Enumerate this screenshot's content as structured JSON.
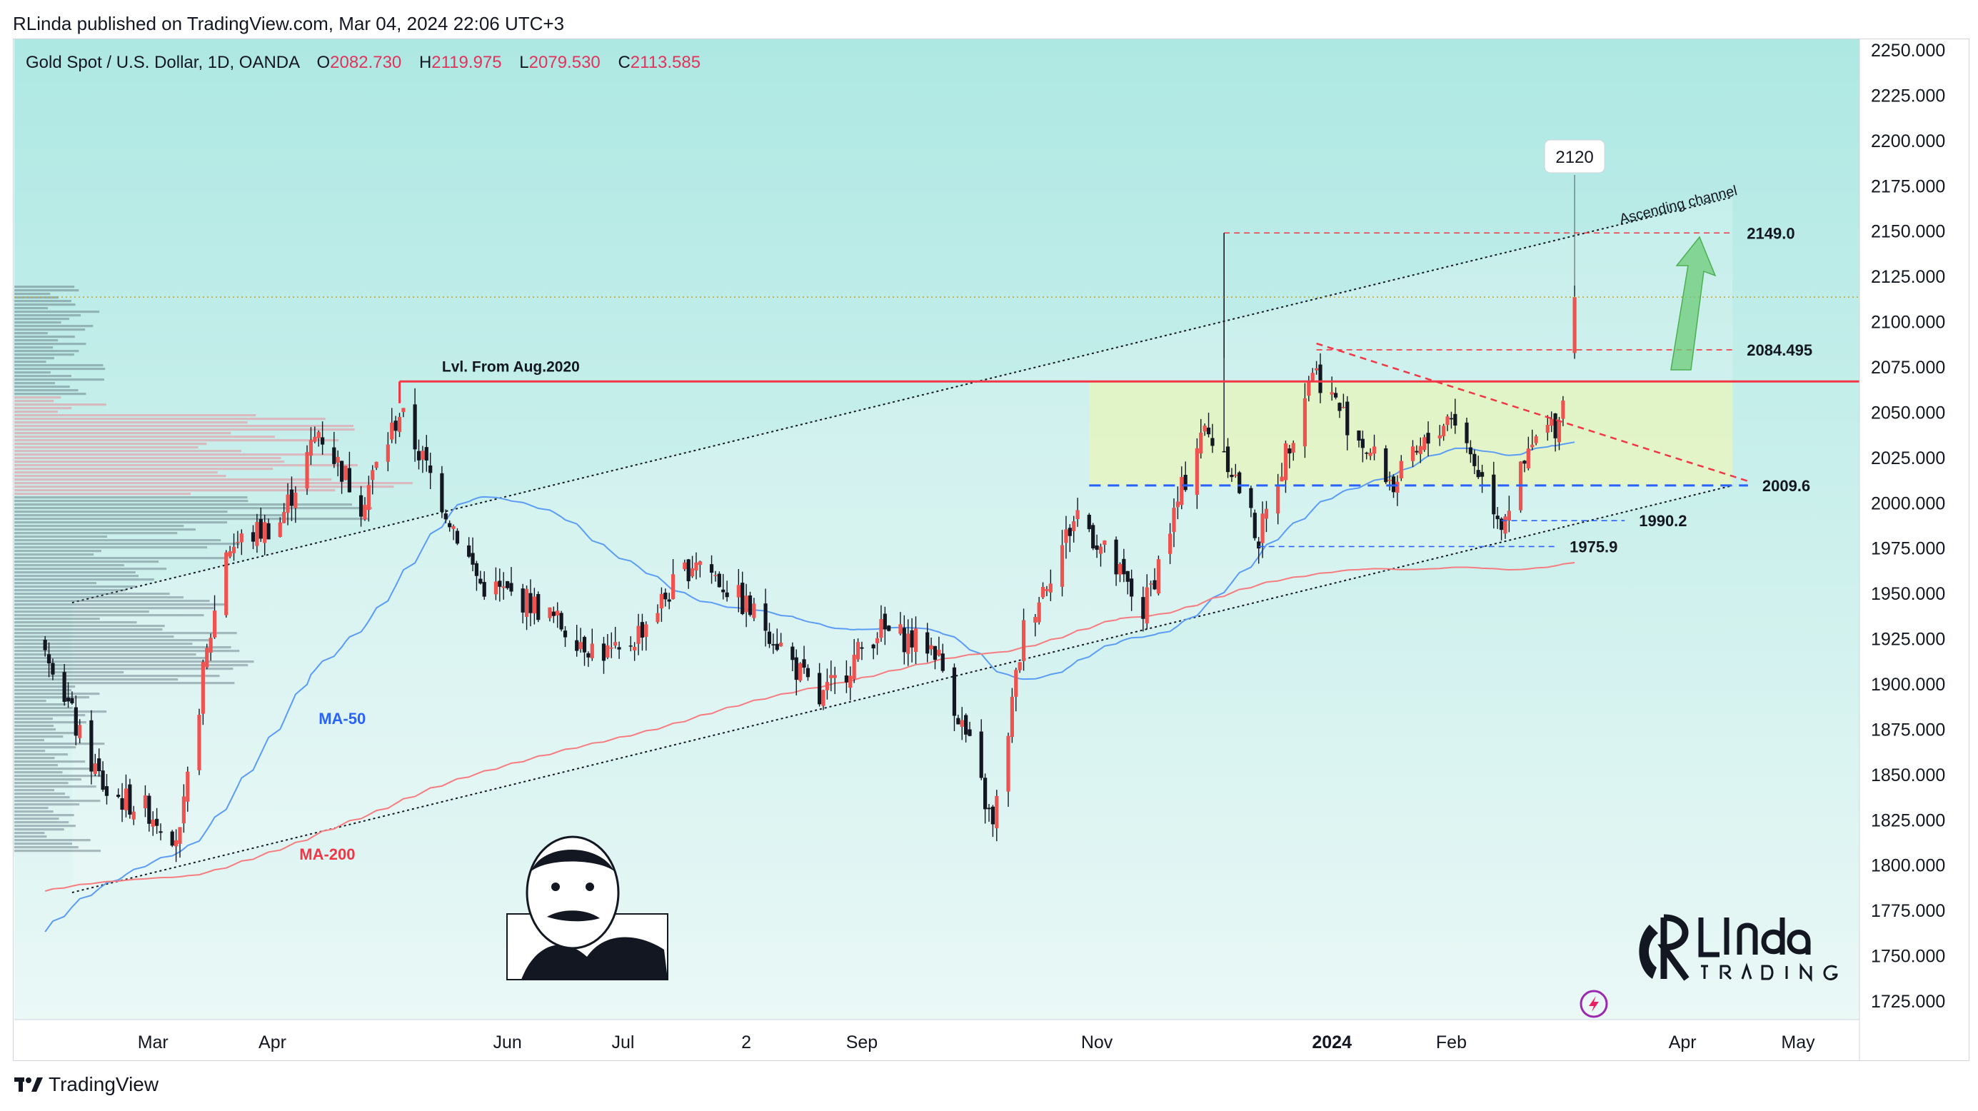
{
  "header": {
    "published": "RLinda published on TradingView.com, Mar 04, 2024 22:06 UTC+3"
  },
  "legend": {
    "symbol": "Gold Spot / U.S. Dollar, 1D, OANDA",
    "o_label": "O",
    "o_value": "2082.730",
    "h_label": "H",
    "h_value": "2119.975",
    "l_label": "L",
    "l_value": "2079.530",
    "c_label": "C",
    "c_value": "2113.585"
  },
  "footer": {
    "brand": "TradingView"
  },
  "colors": {
    "bull": "#26a69a",
    "bear": "#ef5350",
    "candle_body": "#131722",
    "resistance": "#f23645",
    "support_blue": "#2962ff",
    "ma50": "#5b9cf6",
    "ma200": "#f77c80",
    "price_tag": "#f57c00",
    "level_tag": "#f23645",
    "bg_top": "#aee8e3",
    "bg_bottom": "#eaf8f6"
  },
  "chart_data": {
    "type": "candlestick",
    "y_axis": {
      "min": 1725,
      "max": 2250,
      "step": 25,
      "tick_labels": [
        "2250.000",
        "2225.000",
        "2200.000",
        "2175.000",
        "2150.000",
        "2125.000",
        "2100.000",
        "2075.000",
        "2050.000",
        "2025.000",
        "2000.000",
        "1975.000",
        "1950.000",
        "1925.000",
        "1900.000",
        "1875.000",
        "1850.000",
        "1825.000",
        "1800.000",
        "1775.000",
        "1750.000",
        "1725.000"
      ]
    },
    "x_axis": {
      "tick_labels": [
        "Mar",
        "Apr",
        "Jun",
        "Jul",
        "2",
        "Sep",
        "Nov",
        "2024",
        "Feb",
        "Apr",
        "May"
      ]
    },
    "last_price": "2113.585",
    "price_tags": [
      {
        "label": "2113.585",
        "value": 2113.585,
        "color": "#f57c00"
      },
      {
        "label": "2067.000",
        "value": 2067,
        "color": "#f23645"
      }
    ],
    "levels": [
      {
        "label": "2149.0",
        "value": 2149,
        "style": "dashed-red"
      },
      {
        "label": "2084.495",
        "value": 2084.495,
        "style": "dashed-red"
      },
      {
        "label": "2009.6",
        "value": 2009.6,
        "style": "dashed-blue"
      },
      {
        "label": "1990.2",
        "value": 1990.2,
        "style": "dashed-blue-thin"
      },
      {
        "label": "1975.9",
        "value": 1975.9,
        "style": "dashed-blue-thin"
      }
    ],
    "annotations": {
      "resistance_label": "Lvl. From Aug.2020",
      "channel_label": "Ascending channel",
      "ma50_label": "MA-50",
      "ma200_label": "MA-200",
      "peak_label": "2120"
    },
    "close_path": [
      {
        "date": "2023-02-01",
        "close": 1925
      },
      {
        "date": "2023-02-10",
        "close": 1870
      },
      {
        "date": "2023-02-17",
        "close": 1840
      },
      {
        "date": "2023-02-28",
        "close": 1830
      },
      {
        "date": "2023-03-08",
        "close": 1815
      },
      {
        "date": "2023-03-14",
        "close": 1905
      },
      {
        "date": "2023-03-20",
        "close": 1975
      },
      {
        "date": "2023-04-03",
        "close": 1990
      },
      {
        "date": "2023-04-13",
        "close": 2040
      },
      {
        "date": "2023-04-24",
        "close": 2000
      },
      {
        "date": "2023-05-04",
        "close": 2050
      },
      {
        "date": "2023-05-12",
        "close": 2015
      },
      {
        "date": "2023-05-25",
        "close": 1955
      },
      {
        "date": "2023-06-07",
        "close": 1945
      },
      {
        "date": "2023-06-23",
        "close": 1920
      },
      {
        "date": "2023-06-30",
        "close": 1915
      },
      {
        "date": "2023-07-20",
        "close": 1970
      },
      {
        "date": "2023-08-08",
        "close": 1930
      },
      {
        "date": "2023-08-21",
        "close": 1890
      },
      {
        "date": "2023-09-05",
        "close": 1930
      },
      {
        "date": "2023-09-20",
        "close": 1920
      },
      {
        "date": "2023-09-29",
        "close": 1865
      },
      {
        "date": "2023-10-05",
        "close": 1820
      },
      {
        "date": "2023-10-13",
        "close": 1930
      },
      {
        "date": "2023-10-27",
        "close": 1995
      },
      {
        "date": "2023-11-13",
        "close": 1940
      },
      {
        "date": "2023-11-28",
        "close": 2040
      },
      {
        "date": "2023-12-04",
        "close": 2030
      },
      {
        "date": "2023-12-13",
        "close": 1980
      },
      {
        "date": "2023-12-27",
        "close": 2075
      },
      {
        "date": "2024-01-05",
        "close": 2045
      },
      {
        "date": "2024-01-17",
        "close": 2010
      },
      {
        "date": "2024-02-01",
        "close": 2050
      },
      {
        "date": "2024-02-14",
        "close": 1990
      },
      {
        "date": "2024-02-23",
        "close": 2035
      },
      {
        "date": "2024-02-29",
        "close": 2045
      },
      {
        "date": "2024-03-04",
        "close": 2113.585
      }
    ]
  }
}
